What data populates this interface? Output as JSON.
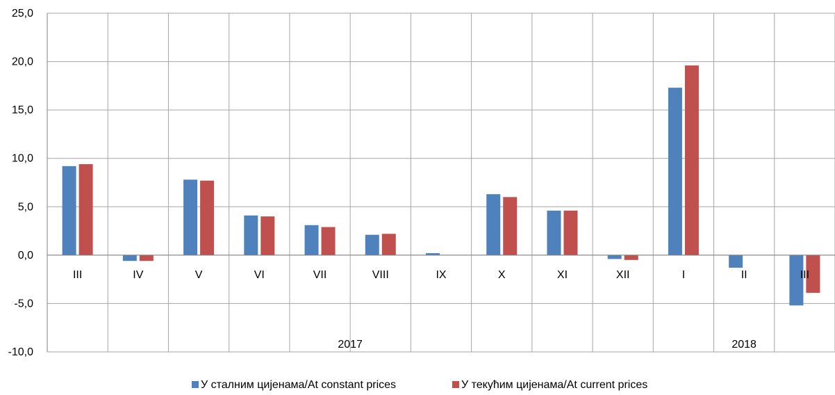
{
  "chart_data": {
    "type": "bar",
    "title": "",
    "xlabel": "",
    "ylabel": "",
    "ylim": [
      -10,
      25
    ],
    "yticks": [
      25,
      20,
      15,
      10,
      5,
      0,
      -5,
      -10
    ],
    "ytick_labels": [
      "25,0",
      "20,0",
      "15,0",
      "10,0",
      "5,0",
      "0,0",
      "-5,0",
      "-10,0"
    ],
    "grid": true,
    "legend_position": "bottom",
    "categories": [
      "III",
      "IV",
      "V",
      "VI",
      "VII",
      "VIII",
      "IX",
      "X",
      "XI",
      "XII",
      "I",
      "II",
      "III"
    ],
    "year_groups": [
      {
        "label": "2017",
        "start": 0,
        "end": 9
      },
      {
        "label": "2018",
        "start": 10,
        "end": 12
      }
    ],
    "series": [
      {
        "name": "У сталним цијенама/At constant prices",
        "color": "#4f81bd",
        "values": [
          9.2,
          -0.6,
          7.8,
          4.1,
          3.1,
          2.1,
          0.2,
          6.3,
          4.6,
          -0.4,
          17.3,
          -1.3,
          -5.2
        ]
      },
      {
        "name": "У текућим цијенама/At current prices",
        "color": "#c0504d",
        "values": [
          9.4,
          -0.6,
          7.7,
          4.0,
          2.9,
          2.2,
          0.0,
          6.0,
          4.6,
          -0.5,
          19.6,
          0.0,
          -3.9
        ]
      }
    ]
  }
}
